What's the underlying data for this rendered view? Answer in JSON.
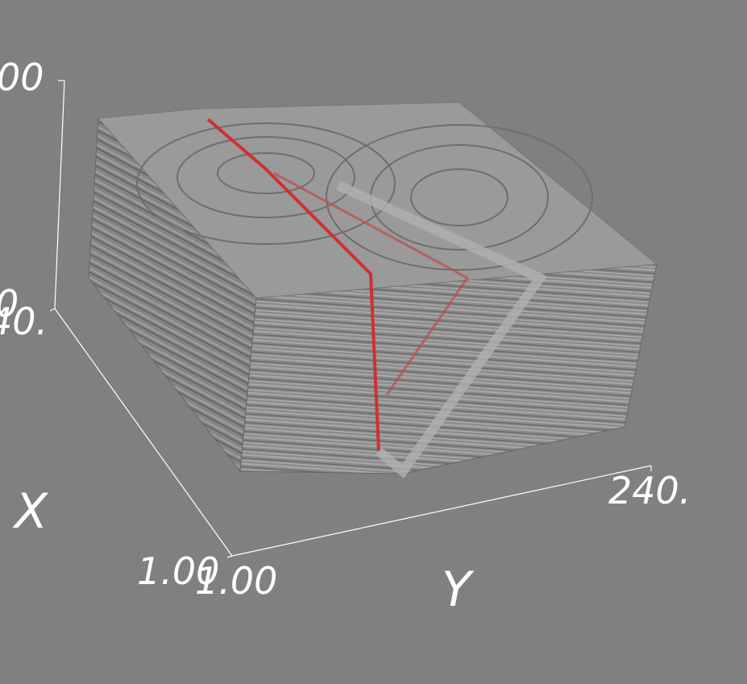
{
  "vertical_axis": {
    "ticks": [
      "00",
      "0"
    ]
  },
  "x_axis": {
    "label": "X",
    "ticks": [
      "40.",
      "1.00"
    ]
  },
  "y_axis": {
    "label": "Y",
    "ticks": [
      "1.00",
      "240."
    ]
  }
}
